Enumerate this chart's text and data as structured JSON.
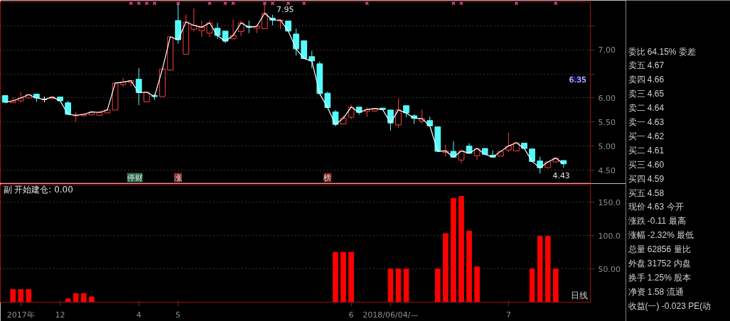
{
  "chart_data": [
    {
      "type": "candlestick",
      "categories": [
        null,
        null,
        null,
        null,
        null,
        null,
        null,
        null,
        null,
        null,
        null,
        null,
        null,
        null,
        null,
        null,
        null,
        null,
        null,
        null,
        null,
        null,
        null,
        null,
        null,
        null,
        null,
        null,
        null,
        null,
        null,
        null,
        null,
        null,
        null,
        null,
        null,
        null,
        null,
        null,
        null,
        null,
        null,
        null,
        null,
        null,
        null,
        null,
        null,
        null,
        null,
        null,
        null,
        null,
        null,
        null,
        null,
        null,
        null,
        null,
        null,
        null,
        null,
        null,
        null,
        null,
        null,
        null,
        null,
        null,
        null,
        null
      ],
      "ohlc": [
        [
          6.05,
          6.05,
          5.91,
          5.91
        ],
        [
          5.9,
          6.02,
          5.9,
          5.94
        ],
        [
          5.94,
          6.12,
          5.91,
          6.0
        ],
        [
          6.0,
          6.07,
          6.0,
          6.07
        ],
        [
          6.08,
          6.09,
          5.92,
          6.0
        ],
        [
          5.97,
          6.03,
          5.91,
          5.97
        ],
        [
          5.99,
          6.03,
          5.99,
          6.02
        ],
        [
          6.02,
          6.02,
          5.94,
          5.94
        ],
        [
          5.9,
          5.94,
          5.66,
          5.66
        ],
        [
          5.63,
          5.71,
          5.51,
          5.64
        ],
        [
          5.63,
          5.68,
          5.62,
          5.66
        ],
        [
          5.65,
          5.73,
          5.64,
          5.71
        ],
        [
          5.64,
          5.73,
          5.64,
          5.7
        ],
        [
          5.69,
          5.76,
          5.69,
          5.75
        ],
        [
          5.75,
          6.31,
          5.75,
          6.31
        ],
        [
          6.28,
          6.42,
          6.23,
          6.33
        ],
        [
          6.32,
          6.37,
          6.24,
          6.36
        ],
        [
          6.39,
          6.62,
          5.85,
          6.11
        ],
        [
          5.92,
          6.12,
          5.92,
          6.12
        ],
        [
          6.05,
          6.09,
          5.96,
          6.03
        ],
        [
          6.03,
          6.6,
          6.03,
          6.6
        ],
        [
          6.58,
          7.27,
          6.57,
          7.27
        ],
        [
          7.61,
          7.98,
          7.13,
          7.21
        ],
        [
          6.91,
          7.73,
          6.91,
          7.58
        ],
        [
          7.43,
          7.86,
          7.38,
          7.51
        ],
        [
          7.4,
          7.61,
          7.27,
          7.47
        ],
        [
          7.35,
          7.61,
          7.27,
          7.56
        ],
        [
          7.45,
          7.56,
          7.23,
          7.3
        ],
        [
          7.39,
          7.39,
          7.14,
          7.18
        ],
        [
          7.23,
          7.63,
          7.23,
          7.3
        ],
        [
          7.38,
          7.61,
          7.29,
          7.56
        ],
        [
          7.49,
          7.61,
          7.35,
          7.47
        ],
        [
          7.45,
          7.53,
          7.35,
          7.49
        ],
        [
          7.44,
          7.95,
          7.44,
          7.76
        ],
        [
          7.66,
          7.73,
          7.51,
          7.62
        ],
        [
          7.6,
          7.63,
          7.43,
          7.62
        ],
        [
          7.6,
          7.6,
          7.39,
          7.39
        ],
        [
          7.33,
          7.44,
          6.88,
          7.02
        ],
        [
          7.19,
          7.19,
          6.82,
          6.82
        ],
        [
          6.86,
          6.98,
          6.62,
          6.77
        ],
        [
          6.71,
          6.76,
          6.09,
          6.09
        ],
        [
          6.1,
          6.13,
          5.8,
          5.8
        ],
        [
          5.71,
          5.75,
          5.41,
          5.45
        ],
        [
          5.46,
          5.63,
          5.46,
          5.58
        ],
        [
          5.6,
          5.86,
          5.56,
          5.81
        ],
        [
          5.81,
          5.81,
          5.65,
          5.7
        ],
        [
          5.72,
          5.8,
          5.61,
          5.76
        ],
        [
          5.73,
          5.78,
          5.71,
          5.78
        ],
        [
          5.79,
          5.79,
          5.76,
          5.76
        ],
        [
          5.75,
          5.75,
          5.32,
          5.48
        ],
        [
          5.44,
          5.99,
          5.38,
          5.75
        ],
        [
          5.84,
          5.84,
          5.6,
          5.69
        ],
        [
          5.63,
          5.66,
          5.46,
          5.58
        ],
        [
          5.52,
          5.76,
          5.46,
          5.57
        ],
        [
          5.53,
          5.61,
          5.42,
          5.42
        ],
        [
          5.4,
          5.4,
          4.89,
          4.89
        ],
        [
          4.87,
          5.03,
          4.78,
          4.9
        ],
        [
          4.89,
          5.1,
          4.77,
          4.77
        ],
        [
          4.71,
          4.9,
          4.65,
          4.9
        ],
        [
          5.0,
          5.06,
          4.85,
          4.85
        ],
        [
          4.8,
          4.95,
          4.71,
          4.95
        ],
        [
          4.95,
          4.95,
          4.83,
          4.83
        ],
        [
          4.81,
          4.91,
          4.77,
          4.77
        ],
        [
          4.79,
          4.89,
          4.79,
          4.89
        ],
        [
          4.92,
          5.28,
          4.88,
          5.0
        ],
        [
          4.9,
          5.07,
          4.9,
          5.07
        ],
        [
          5.06,
          5.06,
          4.95,
          4.95
        ],
        [
          4.94,
          4.94,
          4.68,
          4.68
        ],
        [
          4.69,
          4.78,
          4.43,
          4.55
        ],
        [
          4.55,
          4.67,
          4.55,
          4.67
        ],
        [
          4.67,
          4.75,
          4.67,
          4.75
        ],
        [
          4.7,
          4.7,
          4.55,
          4.63
        ]
      ],
      "colors": [
        "#54fcfc",
        "#ff3c3c",
        "#ff3c3c",
        "#ff3c3c",
        "#54fcfc",
        "#ffffff",
        "#ff3c3c",
        "#54fcfc",
        "#54fcfc",
        "#ff3c3c",
        "#ff3c3c",
        "#ff3c3c",
        "#ff3c3c",
        "#ff3c3c",
        "#ff3c3c",
        "#ff3c3c",
        "#ff3c3c",
        "#54fcfc",
        "#ff3c3c",
        "#54fcfc",
        "#ff3c3c",
        "#ff3c3c",
        "#54fcfc",
        "#ff3c3c",
        "#ff3c3c",
        "#ff3c3c",
        "#ff3c3c",
        "#54fcfc",
        "#54fcfc",
        "#ff3c3c",
        "#ff3c3c",
        "#54fcfc",
        "#ff3c3c",
        "#ff3c3c",
        "#54fcfc",
        "#ff3c3c",
        "#54fcfc",
        "#54fcfc",
        "#54fcfc",
        "#54fcfc",
        "#54fcfc",
        "#54fcfc",
        "#54fcfc",
        "#ff3c3c",
        "#ff3c3c",
        "#54fcfc",
        "#ff3c3c",
        "#ff3c3c",
        "#54fcfc",
        "#54fcfc",
        "#ff3c3c",
        "#54fcfc",
        "#54fcfc",
        "#ff3c3c",
        "#54fcfc",
        "#54fcfc",
        "#ff3c3c",
        "#54fcfc",
        "#ff3c3c",
        "#54fcfc",
        "#ff3c3c",
        "#54fcfc",
        "#54fcfc",
        "#ff3c3c",
        "#ff3c3c",
        "#ff3c3c",
        "#54fcfc",
        "#54fcfc",
        "#54fcfc",
        "#ff3c3c",
        "#ff3c3c",
        "#54fcfc"
      ],
      "series": [
        {
          "type": "line",
          "color": "#ffffff",
          "values": [
            5.91,
            5.94,
            6.0,
            6.07,
            6.0,
            5.97,
            6.02,
            5.94,
            5.66,
            5.64,
            5.66,
            5.71,
            5.7,
            5.75,
            6.31,
            6.33,
            6.36,
            6.11,
            6.12,
            6.03,
            6.6,
            7.27,
            7.21,
            7.58,
            7.51,
            7.47,
            7.56,
            7.3,
            7.18,
            7.3,
            7.56,
            7.47,
            7.49,
            7.76,
            7.62,
            7.62,
            7.39,
            7.02,
            6.82,
            6.77,
            6.09,
            5.8,
            5.45,
            5.58,
            5.81,
            5.7,
            5.76,
            5.78,
            5.76,
            5.48,
            5.75,
            5.69,
            5.58,
            5.57,
            5.42,
            4.89,
            4.9,
            4.77,
            4.9,
            4.85,
            4.95,
            4.83,
            4.77,
            4.89,
            5.0,
            5.07,
            4.95,
            4.68,
            4.55,
            4.67,
            4.75,
            4.63
          ]
        },
        {
          "type": "scatter",
          "color": "#e0409a",
          "marker": "cross",
          "values": [
            null,
            null,
            null,
            null,
            null,
            null,
            null,
            null,
            null,
            null,
            null,
            null,
            null,
            null,
            null,
            null,
            7.97,
            7.97,
            7.97,
            7.97,
            null,
            null,
            7.97,
            null,
            null,
            null,
            7.97,
            null,
            7.97,
            7.97,
            null,
            null,
            null,
            7.97,
            7.97,
            null,
            7.97,
            null,
            7.97,
            null,
            null,
            null,
            null,
            null,
            null,
            null,
            7.97,
            null,
            null,
            null,
            null,
            null,
            null,
            null,
            null,
            null,
            null,
            7.97,
            7.97,
            null,
            null,
            null,
            null,
            null,
            null,
            7.97,
            null,
            null,
            null,
            null,
            7.97,
            null
          ]
        }
      ],
      "ylim": [
        4.22,
        8.0
      ],
      "yticks": [
        {
          "value": 4.5,
          "label": "4.50"
        },
        {
          "value": 5.0,
          "label": "5.00"
        },
        {
          "value": 5.5,
          "label": "5.50"
        },
        {
          "value": 6.0,
          "label": "6.00"
        },
        {
          "value": 6.5,
          "label": null
        },
        {
          "value": 7.0,
          "label": "7.00"
        },
        {
          "value": 7.5,
          "label": null
        }
      ],
      "grid": "y",
      "tick_labels": "y",
      "annotations": [
        "7.95",
        "4.43",
        "6.35",
        "停财",
        "涨",
        "榜"
      ]
    },
    {
      "type": "bar",
      "title": "副 开始建仓: 0.00",
      "color": "#ff0000",
      "categories": [
        null,
        null,
        "2017年",
        null,
        null,
        null,
        null,
        "12",
        null,
        null,
        null,
        null,
        null,
        null,
        null,
        null,
        null,
        "4",
        null,
        null,
        null,
        null,
        "5",
        null,
        null,
        null,
        null,
        null,
        null,
        null,
        null,
        null,
        null,
        null,
        null,
        null,
        null,
        null,
        null,
        null,
        null,
        null,
        null,
        null,
        "6",
        null,
        null,
        null,
        null,
        "2018/06/04/—",
        null,
        null,
        null,
        null,
        null,
        null,
        null,
        null,
        null,
        null,
        null,
        null,
        null,
        null,
        "7",
        null,
        null,
        null,
        null,
        null,
        null,
        null
      ],
      "values": [
        null,
        19,
        19,
        19,
        null,
        null,
        null,
        null,
        5,
        13,
        13,
        8,
        null,
        null,
        null,
        null,
        null,
        null,
        null,
        null,
        null,
        null,
        null,
        null,
        null,
        null,
        null,
        null,
        null,
        null,
        null,
        null,
        null,
        null,
        null,
        null,
        null,
        null,
        null,
        null,
        null,
        null,
        75,
        75,
        75,
        null,
        null,
        null,
        null,
        50,
        50,
        50,
        null,
        null,
        null,
        50,
        103,
        156,
        159,
        107,
        53,
        null,
        null,
        null,
        null,
        null,
        null,
        50,
        99,
        99,
        50,
        null
      ],
      "ylim": [
        0,
        176
      ],
      "yticks": [
        {
          "value": 50,
          "label": "50.00"
        },
        {
          "value": 100,
          "label": "100.0"
        },
        {
          "value": 150,
          "label": "150.0"
        }
      ],
      "grid": "y",
      "annotations": [
        "日线"
      ]
    },
    {
      "type": "other",
      "annotations": [
        "委比 64.15% 委差",
        "卖五 4.67",
        "卖四 4.66",
        "卖三 4.65",
        "卖二 4.64",
        "卖一 4.63",
        "买一 4.62",
        "买二 4.61",
        "买三 4.60",
        "买四 4.59",
        "买五 4.58",
        "现价 4.63 今开",
        "涨跌 -0.11 最高",
        "涨幅 -2.32% 最低",
        "总量 62856 量比",
        "外盘 31752 内盘",
        "换手 1.25% 股本",
        "净资 1.58 流通",
        "收益(一) -0.023 PE(动"
      ]
    }
  ]
}
